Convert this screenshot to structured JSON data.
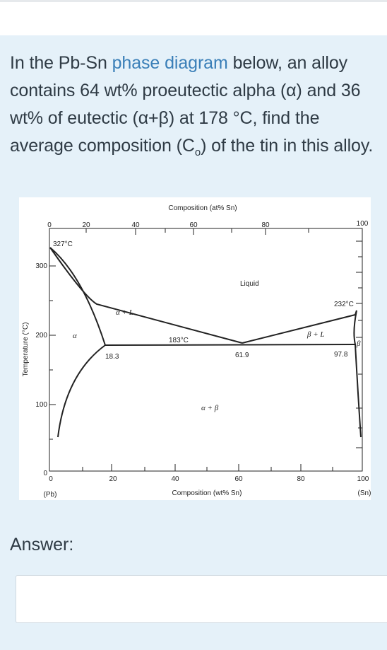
{
  "question": {
    "before_link": "In the Pb-Sn ",
    "link_text": "phase diagram",
    "after_link": " below, an alloy contains 64 wt% proeutectic alpha (α) and 36 wt% of eutectic (α+β) at 178 °C, find the average composition (C",
    "subscript": "o",
    "after_subscript": ") of the tin in this alloy."
  },
  "answer_label": "Answer:",
  "answer_value": "",
  "diagram": {
    "top_axis_title": "Composition (at% Sn)",
    "top_ticks": [
      "0",
      "20",
      "40",
      "60",
      "80",
      "100"
    ],
    "bottom_axis_title": "Composition (wt% Sn)",
    "bottom_ticks": [
      "0",
      "20",
      "40",
      "60",
      "80",
      "100"
    ],
    "left_axis_title": "Temperature (°C)",
    "left_ticks": [
      "300",
      "200",
      "100",
      "0"
    ],
    "end_left": "(Pb)",
    "end_right": "(Sn)",
    "labels": {
      "pb_melt": "327°C",
      "sn_melt": "232°C",
      "eutectic_temp": "183°C",
      "liquid": "Liquid",
      "alpha_l": "α + L",
      "beta_l": "β + L",
      "alpha": "α",
      "beta": "β",
      "alpha_beta": "α + β",
      "comp_alpha": "18.3",
      "comp_eutectic": "61.9",
      "comp_beta": "97.8"
    },
    "line_color": "#222222"
  }
}
